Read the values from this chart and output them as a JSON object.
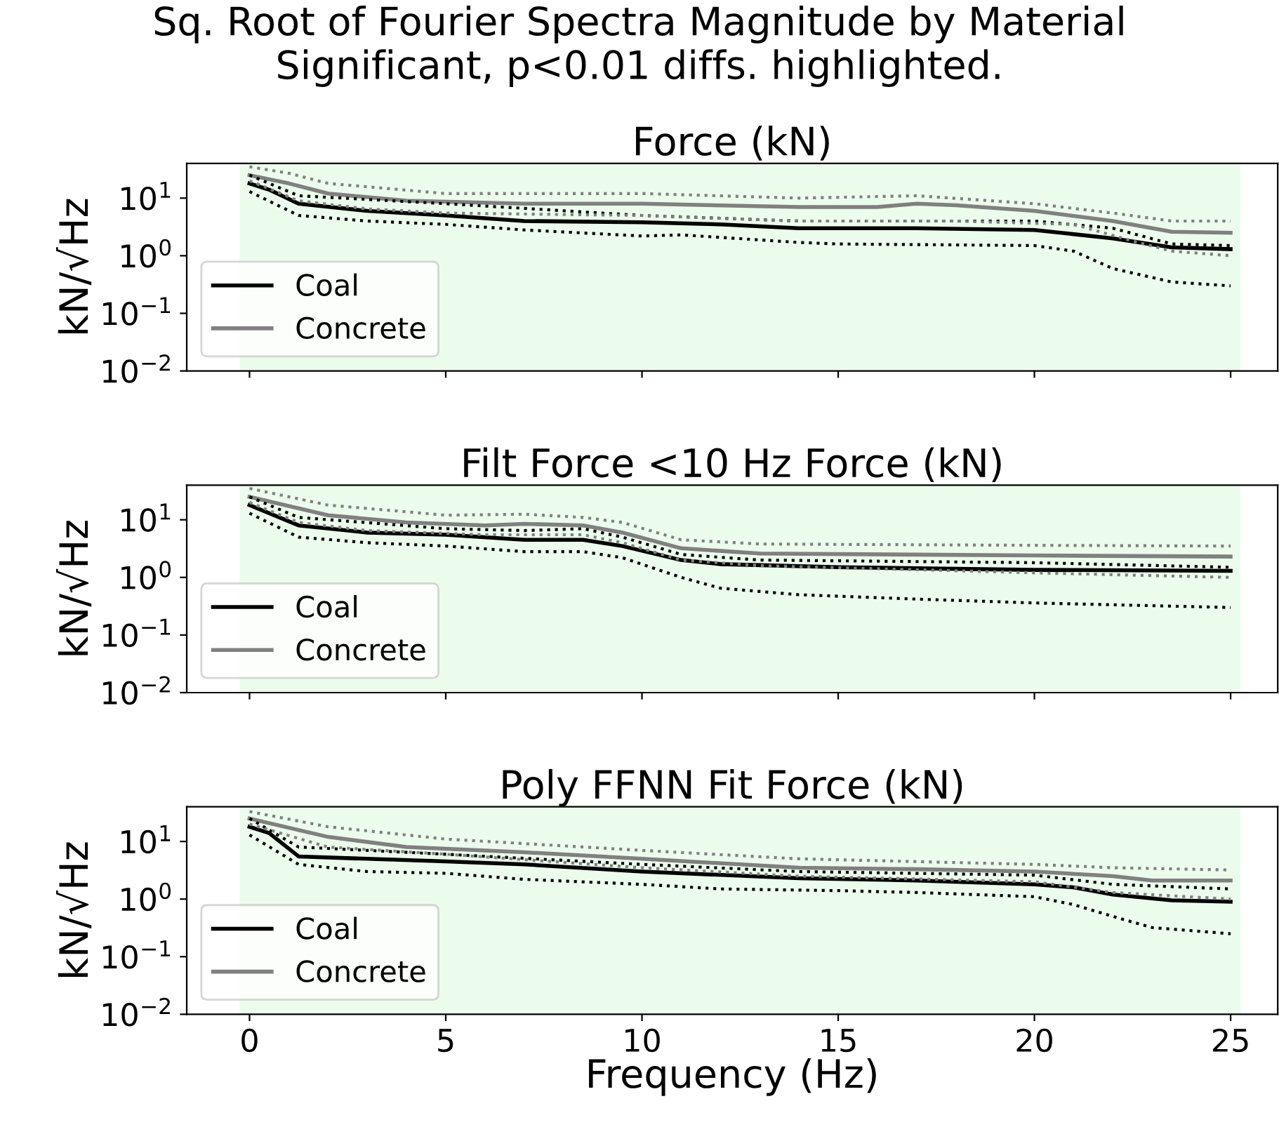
{
  "chart_data": [
    {
      "type": "line",
      "title": "Force (kN)",
      "ylabel": "kN/√Hz",
      "annotations": [
        "Sq. Root of Fourier Spectra Magnitude by Material\nSignificant, p<0.01 diffs. highlighted."
      ],
      "log": "y",
      "xlim": [
        -1.6,
        26.2
      ],
      "xticks": [
        0,
        5,
        10,
        15,
        20,
        25
      ],
      "ylim": [
        0.01,
        40
      ],
      "yticks": [
        {
          "value": 0.01,
          "label": "10$^{−2}$"
        },
        {
          "value": 0.1,
          "label": "10$^{−1}$"
        },
        {
          "value": 1,
          "label": "10$^{0}$"
        },
        {
          "value": 10,
          "label": "10$^{1}$"
        }
      ],
      "tick_labels": "y",
      "legend": "bottom left",
      "grid": false,
      "bands": [
        {
          "axis": "x",
          "from": -0.25,
          "to": 25.25,
          "color": "#ecfcec"
        }
      ],
      "series": [
        {
          "name": "Coal",
          "color": "#000000",
          "line_style": "solid",
          "x": [
            0,
            0.5,
            1.25,
            3,
            5,
            7,
            10,
            12,
            14,
            17,
            20,
            22,
            23.5,
            25
          ],
          "values": [
            18,
            14,
            8,
            6,
            5,
            4,
            3.8,
            3.5,
            3,
            3,
            2.8,
            2,
            1.4,
            1.3
          ]
        },
        {
          "name": "Concrete",
          "color": "#808080",
          "line_style": "solid",
          "x": [
            0,
            1,
            2,
            4,
            7,
            10,
            14,
            16,
            17,
            18,
            20,
            22,
            23.5,
            25
          ],
          "values": [
            25,
            18,
            12,
            9,
            8,
            8,
            7,
            7,
            8,
            7.5,
            6,
            4,
            2.6,
            2.5
          ]
        },
        {
          "color": "#000000",
          "line_style": "dotted",
          "x": [
            0,
            1.25,
            3,
            5,
            7,
            10,
            11,
            14,
            15,
            20,
            21,
            22,
            23.5,
            25
          ],
          "values": [
            13,
            5,
            4,
            3.5,
            2.8,
            2.2,
            2.3,
            1.7,
            1.6,
            1.5,
            1.2,
            0.6,
            0.35,
            0.3
          ]
        },
        {
          "color": "#000000",
          "line_style": "dotted",
          "x": [
            0,
            1.25,
            5,
            10,
            14,
            20,
            22,
            23.5,
            25
          ],
          "values": [
            25,
            11,
            8,
            5,
            4,
            4,
            3,
            1.6,
            1.5
          ]
        },
        {
          "color": "#808080",
          "line_style": "dotted",
          "x": [
            0,
            1.25,
            3,
            5,
            10,
            14,
            18,
            21,
            22.5,
            23.5,
            25
          ],
          "values": [
            20,
            9,
            6.5,
            5.5,
            5,
            4,
            4,
            3.5,
            1.8,
            1.2,
            1.0
          ]
        },
        {
          "color": "#808080",
          "line_style": "dotted",
          "x": [
            0,
            1,
            2,
            5,
            10,
            14,
            17,
            20,
            22,
            23.5,
            25
          ],
          "values": [
            35,
            27,
            18,
            12,
            12,
            10,
            11,
            8,
            5.5,
            4,
            4
          ]
        }
      ]
    },
    {
      "type": "line",
      "title": "Filt Force <10 Hz Force (kN)",
      "ylabel": "kN/√Hz",
      "log": "y",
      "xlim": [
        -1.6,
        26.2
      ],
      "xticks": [
        0,
        5,
        10,
        15,
        20,
        25
      ],
      "ylim": [
        0.01,
        40
      ],
      "yticks": [
        {
          "value": 0.01,
          "label": "10$^{−2}$"
        },
        {
          "value": 0.1,
          "label": "10$^{−1}$"
        },
        {
          "value": 1,
          "label": "10$^{0}$"
        },
        {
          "value": 10,
          "label": "10$^{1}$"
        }
      ],
      "tick_labels": "y",
      "legend": "bottom left",
      "grid": false,
      "bands": [
        {
          "axis": "x",
          "from": -0.25,
          "to": 25.25,
          "color": "#ecfcec"
        }
      ],
      "series": [
        {
          "name": "Coal",
          "color": "#000000",
          "line_style": "solid",
          "x": [
            0,
            1.25,
            3,
            5,
            7,
            8.5,
            9.5,
            11,
            12,
            15,
            20,
            25
          ],
          "values": [
            18,
            8,
            6,
            5.5,
            4.5,
            4.5,
            3.5,
            2,
            1.7,
            1.5,
            1.35,
            1.3
          ]
        },
        {
          "name": "Concrete",
          "color": "#808080",
          "line_style": "solid",
          "x": [
            0,
            2,
            4,
            6,
            7,
            8.5,
            9.5,
            11,
            13,
            20,
            25
          ],
          "values": [
            25,
            12,
            9,
            8,
            8.5,
            8,
            6,
            3.2,
            2.6,
            2.4,
            2.3
          ]
        },
        {
          "color": "#000000",
          "line_style": "dotted",
          "x": [
            0,
            1.25,
            3,
            5,
            7,
            8.5,
            9.5,
            11,
            12,
            14,
            17,
            20,
            25
          ],
          "values": [
            13,
            5,
            4,
            3.5,
            2.8,
            2.8,
            2.2,
            1,
            0.65,
            0.5,
            0.42,
            0.36,
            0.3
          ]
        },
        {
          "color": "#000000",
          "line_style": "dotted",
          "x": [
            0,
            1.25,
            5,
            7,
            8.5,
            9.5,
            11,
            13,
            20,
            25
          ],
          "values": [
            25,
            11,
            7,
            6.5,
            7,
            5,
            2.5,
            2,
            1.8,
            1.5
          ]
        },
        {
          "color": "#808080",
          "line_style": "dotted",
          "x": [
            0,
            1.25,
            3,
            6,
            8.5,
            9.5,
            11,
            13,
            20,
            25
          ],
          "values": [
            20,
            9,
            6.5,
            5.5,
            5.5,
            4,
            2,
            1.6,
            1.2,
            1.0
          ]
        },
        {
          "color": "#808080",
          "line_style": "dotted",
          "x": [
            0,
            2,
            5,
            7,
            8.5,
            9.5,
            11,
            13,
            20,
            25
          ],
          "values": [
            35,
            18,
            12,
            12.5,
            11,
            9,
            4.5,
            3.8,
            3.6,
            3.5
          ]
        }
      ]
    },
    {
      "type": "line",
      "title": "Poly FFNN Fit Force (kN)",
      "xlabel": "Frequency (Hz)",
      "ylabel": "kN/√Hz",
      "log": "y",
      "xlim": [
        -1.6,
        26.2
      ],
      "xticks": [
        0,
        5,
        10,
        15,
        20,
        25
      ],
      "ylim": [
        0.01,
        40
      ],
      "yticks": [
        {
          "value": 0.01,
          "label": "10$^{−2}$"
        },
        {
          "value": 0.1,
          "label": "10$^{−1}$"
        },
        {
          "value": 1,
          "label": "10$^{0}$"
        },
        {
          "value": 10,
          "label": "10$^{1}$"
        }
      ],
      "legend": "bottom left",
      "grid": false,
      "bands": [
        {
          "axis": "x",
          "from": -0.25,
          "to": 25.25,
          "color": "#ecfcec"
        }
      ],
      "series": [
        {
          "name": "Coal",
          "color": "#000000",
          "line_style": "solid",
          "x": [
            0,
            0.5,
            1.25,
            3,
            5,
            7,
            10,
            14,
            17,
            20,
            21,
            22,
            23.5,
            25
          ],
          "values": [
            18,
            14,
            5.5,
            5,
            4.5,
            4,
            3,
            2.3,
            2.1,
            1.8,
            1.6,
            1.2,
            0.95,
            0.9
          ]
        },
        {
          "name": "Concrete",
          "color": "#808080",
          "line_style": "solid",
          "x": [
            0,
            2,
            4,
            7,
            10,
            14,
            17,
            20,
            22,
            23,
            25
          ],
          "values": [
            25,
            12,
            8,
            6.5,
            5,
            3.5,
            3.3,
            3,
            2.5,
            2.1,
            2.1
          ]
        },
        {
          "color": "#000000",
          "line_style": "dotted",
          "x": [
            0,
            1.25,
            3,
            5,
            7,
            10,
            12,
            15,
            17,
            20,
            21,
            22,
            23,
            25
          ],
          "values": [
            13,
            4,
            3,
            2.8,
            2.2,
            1.8,
            1.5,
            1.4,
            1.3,
            1.1,
            0.8,
            0.5,
            0.32,
            0.25
          ]
        },
        {
          "color": "#000000",
          "line_style": "dotted",
          "x": [
            0,
            1.25,
            5,
            10,
            14,
            20,
            22,
            25
          ],
          "values": [
            25,
            8,
            6,
            4,
            3,
            2.6,
            1.8,
            1.5
          ]
        },
        {
          "color": "#808080",
          "line_style": "dotted",
          "x": [
            0,
            2,
            5,
            10,
            14,
            20,
            22,
            25
          ],
          "values": [
            20,
            8,
            6,
            3.5,
            2.5,
            2,
            1.3,
            1.0
          ]
        },
        {
          "color": "#808080",
          "line_style": "dotted",
          "x": [
            0,
            2,
            5,
            10,
            14,
            20,
            22,
            25
          ],
          "values": [
            33,
            18,
            11,
            7,
            5,
            4,
            3.5,
            3.2
          ]
        }
      ]
    }
  ]
}
